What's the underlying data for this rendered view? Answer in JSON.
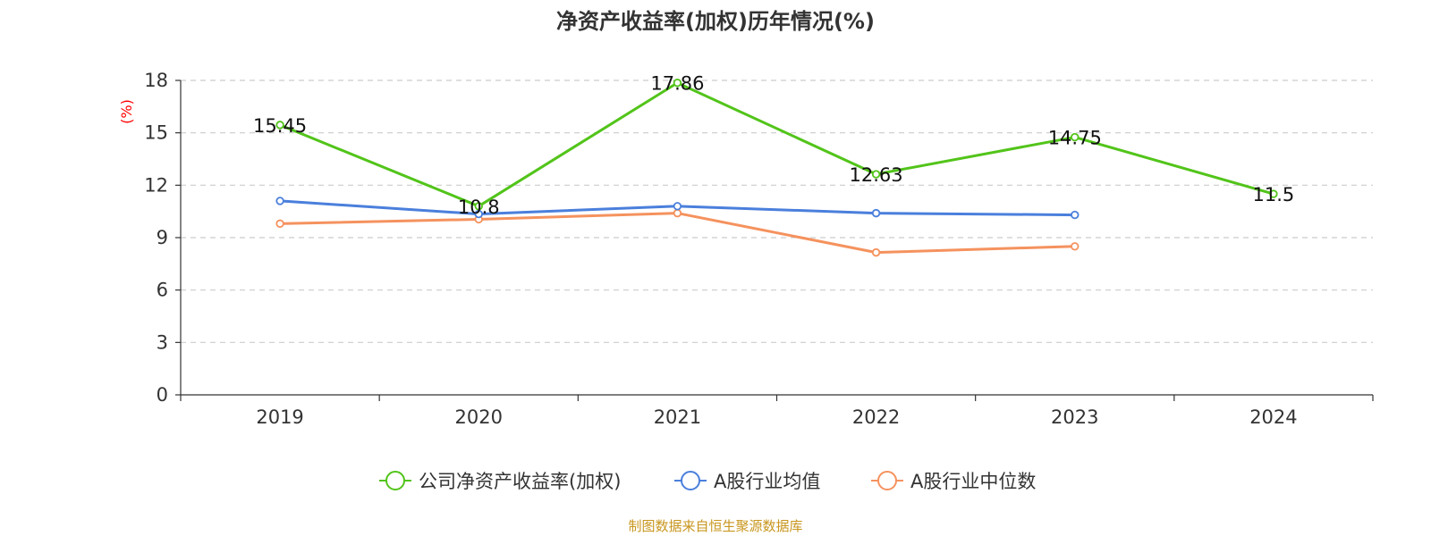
{
  "chart_data": {
    "type": "line",
    "title": "净资产收益率(加权)历年情况(%)",
    "ylabel": "(%)",
    "xlabel": "",
    "categories": [
      "2019",
      "2020",
      "2021",
      "2022",
      "2023",
      "2024"
    ],
    "yticks": [
      "0",
      "3",
      "6",
      "9",
      "12",
      "15",
      "18"
    ],
    "ylim": [
      0,
      18
    ],
    "grid": true,
    "legend_position": "bottom",
    "series": [
      {
        "name": "公司净资产收益率(加权)",
        "color": "#52c41a",
        "values": [
          15.45,
          10.8,
          17.86,
          12.63,
          14.75,
          11.5
        ],
        "labels": [
          "15.45",
          "10.8",
          "17.86",
          "12.63",
          "14.75",
          "11.5"
        ]
      },
      {
        "name": "A股行业均值",
        "color": "#4a7fdc",
        "values": [
          11.1,
          10.35,
          10.8,
          10.4,
          10.3,
          null
        ]
      },
      {
        "name": "A股行业中位数",
        "color": "#f5925e",
        "values": [
          9.8,
          10.05,
          10.4,
          8.15,
          8.5,
          null
        ]
      }
    ]
  },
  "source": "制图数据来自恒生聚源数据库"
}
